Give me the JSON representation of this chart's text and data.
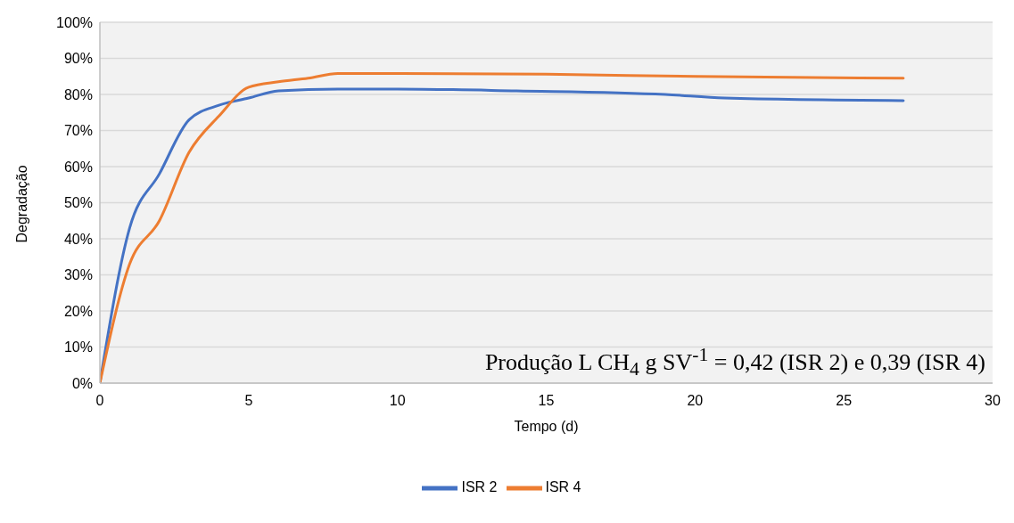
{
  "chart_data": {
    "type": "line",
    "xlabel": "Tempo (d)",
    "ylabel": "Degradação",
    "series": [
      {
        "name": "ISR 2",
        "color": "#4472c4",
        "x": [
          0,
          1,
          2,
          3,
          4,
          5,
          6,
          8,
          10,
          14,
          19,
          21,
          27
        ],
        "values": [
          0,
          43,
          58,
          73,
          77,
          79,
          81,
          81.5,
          81.5,
          81,
          80,
          79,
          78.3
        ]
      },
      {
        "name": "ISR 4",
        "color": "#ed7d31",
        "x": [
          0,
          1,
          2,
          3,
          4,
          5,
          6,
          7,
          8,
          10,
          15,
          20,
          27
        ],
        "values": [
          0,
          33,
          45,
          64,
          74,
          82,
          83.5,
          84.5,
          85.8,
          85.8,
          85.6,
          85,
          84.5
        ]
      }
    ],
    "xlim": [
      0,
      30
    ],
    "xticks": [
      0,
      5,
      10,
      15,
      20,
      25,
      30
    ],
    "ylim": [
      0,
      100
    ],
    "yticks": [
      {
        "value": 0,
        "label": "0%"
      },
      {
        "value": 10,
        "label": "10%"
      },
      {
        "value": 20,
        "label": "20%"
      },
      {
        "value": 30,
        "label": "30%"
      },
      {
        "value": 40,
        "label": "40%"
      },
      {
        "value": 50,
        "label": "50%"
      },
      {
        "value": 60,
        "label": "60%"
      },
      {
        "value": 70,
        "label": "70%"
      },
      {
        "value": 80,
        "label": "80%"
      },
      {
        "value": 90,
        "label": "90%"
      },
      {
        "value": 100,
        "label": "100%"
      }
    ],
    "grid": "y",
    "legend": "bottom",
    "marker": "none",
    "line_style": "solid",
    "annotations": [
      "Produção L CH$_{4}$ g SV$^{-1}$ = 0,42 (ISR 2) e 0,39 (ISR 4)"
    ]
  }
}
